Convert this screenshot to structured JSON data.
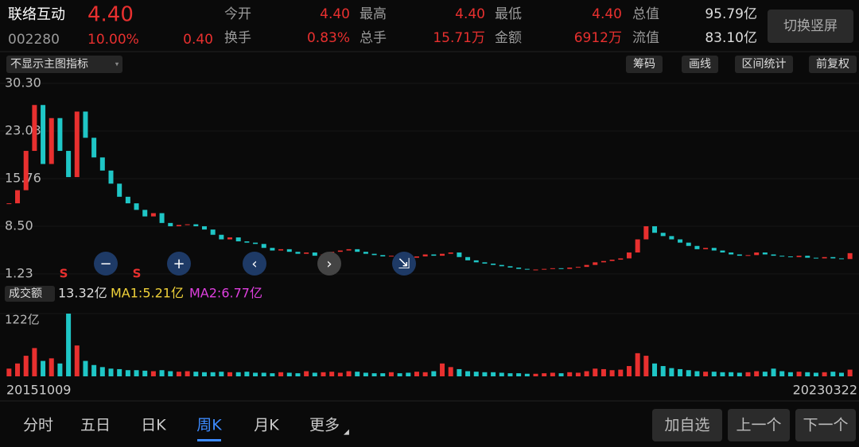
{
  "header": {
    "name": "联络互动",
    "price": "4.40",
    "code": "002280",
    "change_pct": "10.00%",
    "change": "0.40",
    "stats": [
      [
        {
          "label": "今开",
          "value": "4.40"
        },
        {
          "label": "最高",
          "value": "4.40"
        },
        {
          "label": "最低",
          "value": "4.40"
        },
        {
          "label": "总值",
          "value": "95.79亿"
        }
      ],
      [
        {
          "label": "换手",
          "value": "0.83%"
        },
        {
          "label": "总手",
          "value": "15.71万"
        },
        {
          "label": "金额",
          "value": "6912万"
        },
        {
          "label": "流值",
          "value": "83.10亿"
        }
      ]
    ],
    "rotate_button": "切换竖屏"
  },
  "toolbar": {
    "indicator": "不显示主图指标",
    "buttons": [
      "筹码",
      "画线",
      "区间统计",
      "前复权"
    ]
  },
  "chart": {
    "type": "candlestick",
    "signal": "S",
    "ylim": [
      1.23,
      30.3
    ],
    "yticks": [
      {
        "value": 30.3,
        "label": "30.30"
      },
      23.03,
      15.76,
      {
        "value": 8.5,
        "label": "8.50"
      },
      1.23
    ],
    "close": [
      12,
      14,
      20,
      27,
      18,
      25,
      20,
      16,
      26,
      22,
      19,
      17,
      15,
      13,
      12,
      11,
      10,
      10.5,
      9,
      8.5,
      8.7,
      8.8,
      8.5,
      8.0,
      7.2,
      6.5,
      6.8,
      6.2,
      6.0,
      5.8,
      5.2,
      4.8,
      5.0,
      4.6,
      4.3,
      4.5,
      4.0,
      4.2,
      4.6,
      4.8,
      5.0,
      4.6,
      4.3,
      4.1,
      3.9,
      4.0,
      3.8,
      3.7,
      3.9,
      4.2,
      4.0,
      4.3,
      4.5,
      3.8,
      3.3,
      3.0,
      2.8,
      2.6,
      2.4,
      2.2,
      2.0,
      1.9,
      1.9,
      2.0,
      2.1,
      2.0,
      2.2,
      2.3,
      2.6,
      3.0,
      3.2,
      3.4,
      3.6,
      4.5,
      6.5,
      8.5,
      7.5,
      7.0,
      6.5,
      6.0,
      5.5,
      5.0,
      5.2,
      4.8,
      4.5,
      4.2,
      4.0,
      4.1,
      4.5,
      4.2,
      4.0,
      3.9,
      3.8,
      4.0,
      3.7,
      3.6,
      3.8,
      3.6,
      3.5,
      4.4
    ],
    "up_color": "#e8302f",
    "down_color": "#1fc6c6",
    "x_start": "20151009",
    "x_end": "20230322"
  },
  "volume": {
    "label": "成交额",
    "current": "13.32亿",
    "ma1": "MA1:5.21亿",
    "ma2": "MA2:6.77亿",
    "ylim": [
      0,
      122
    ],
    "yticks": [
      {
        "value": 122,
        "label": "122亿"
      }
    ],
    "values": [
      15,
      25,
      40,
      55,
      30,
      35,
      25,
      122,
      60,
      30,
      22,
      18,
      15,
      14,
      12,
      12,
      11,
      10,
      12,
      10,
      9,
      10,
      9,
      8,
      8,
      9,
      8,
      8,
      9,
      7,
      7,
      6,
      8,
      7,
      6,
      10,
      7,
      8,
      9,
      7,
      10,
      9,
      7,
      6,
      6,
      8,
      6,
      7,
      9,
      8,
      10,
      25,
      18,
      14,
      10,
      9,
      8,
      8,
      7,
      6,
      6,
      5,
      5,
      6,
      7,
      6,
      8,
      7,
      10,
      15,
      14,
      12,
      13,
      20,
      45,
      40,
      25,
      20,
      16,
      14,
      12,
      10,
      9,
      9,
      8,
      8,
      7,
      8,
      10,
      9,
      15,
      10,
      8,
      9,
      8,
      7,
      8,
      9,
      7,
      13
    ]
  },
  "tabs": {
    "items": [
      "分时",
      "五日",
      "日K",
      "周K",
      "月K",
      "更多"
    ],
    "active": 3
  },
  "actions": [
    "加自选",
    "上一个",
    "下一个"
  ]
}
